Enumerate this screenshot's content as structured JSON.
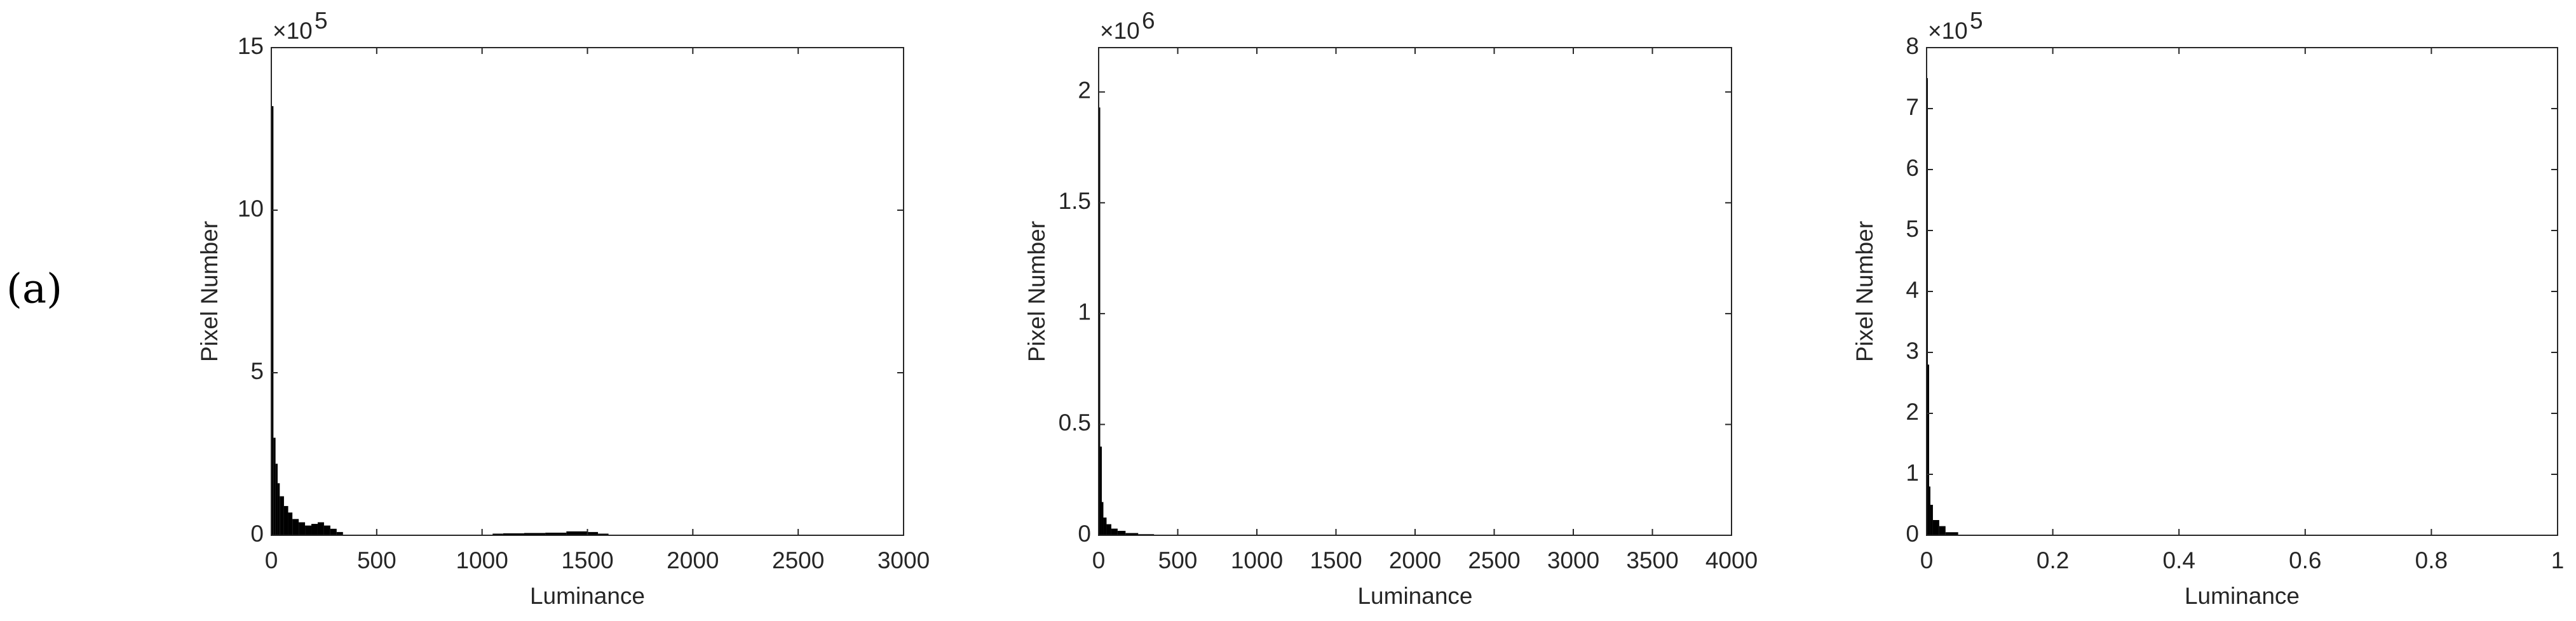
{
  "panel_label": "(a)",
  "chart_data": [
    {
      "type": "histogram",
      "xlabel": "Luminance",
      "ylabel": "Pixel Number",
      "y_multiplier": "×10",
      "y_exponent": "5",
      "color": "#000000",
      "bins": [
        0,
        10,
        20,
        30,
        40,
        60,
        80,
        100,
        130,
        160,
        190,
        220,
        250,
        280,
        310,
        340,
        1050,
        1100,
        1200,
        1300,
        1400,
        1500,
        1550,
        1600
      ],
      "values": [
        13.2,
        3.0,
        2.2,
        1.6,
        1.2,
        0.9,
        0.7,
        0.5,
        0.4,
        0.3,
        0.35,
        0.4,
        0.3,
        0.2,
        0.1,
        0,
        0.05,
        0.06,
        0.07,
        0.08,
        0.12,
        0.1,
        0.05
      ],
      "xlim": [
        0,
        3000
      ],
      "xticks": [
        0,
        500,
        1000,
        1500,
        2000,
        2500,
        3000
      ],
      "ylim": [
        0,
        15
      ],
      "yticks": [
        0,
        5,
        10,
        15
      ]
    },
    {
      "type": "histogram",
      "xlabel": "Luminance",
      "ylabel": "Pixel Number",
      "y_multiplier": "×10",
      "y_exponent": "6",
      "color": "#000000",
      "bins": [
        0,
        10,
        20,
        30,
        50,
        80,
        120,
        170,
        250,
        350
      ],
      "values": [
        1.93,
        0.4,
        0.15,
        0.08,
        0.05,
        0.03,
        0.02,
        0.01,
        0.005
      ],
      "xlim": [
        0,
        4000
      ],
      "xticks": [
        0,
        500,
        1000,
        1500,
        2000,
        2500,
        3000,
        3500,
        4000
      ],
      "ylim": [
        0,
        2.2
      ],
      "yticks": [
        0,
        0.5,
        1,
        1.5,
        2
      ]
    },
    {
      "type": "histogram",
      "xlabel": "Luminance",
      "ylabel": "Pixel Number",
      "y_multiplier": "×10",
      "y_exponent": "5",
      "color": "#000000",
      "bins": [
        0,
        0.002,
        0.004,
        0.006,
        0.01,
        0.02,
        0.03,
        0.05
      ],
      "values": [
        7.5,
        2.8,
        0.8,
        0.5,
        0.25,
        0.15,
        0.05
      ],
      "xlim": [
        0,
        1
      ],
      "xticks": [
        0,
        0.2,
        0.4,
        0.6,
        0.8,
        1
      ],
      "ylim": [
        0,
        8
      ],
      "yticks": [
        0,
        1,
        2,
        3,
        4,
        5,
        6,
        7,
        8
      ]
    }
  ]
}
